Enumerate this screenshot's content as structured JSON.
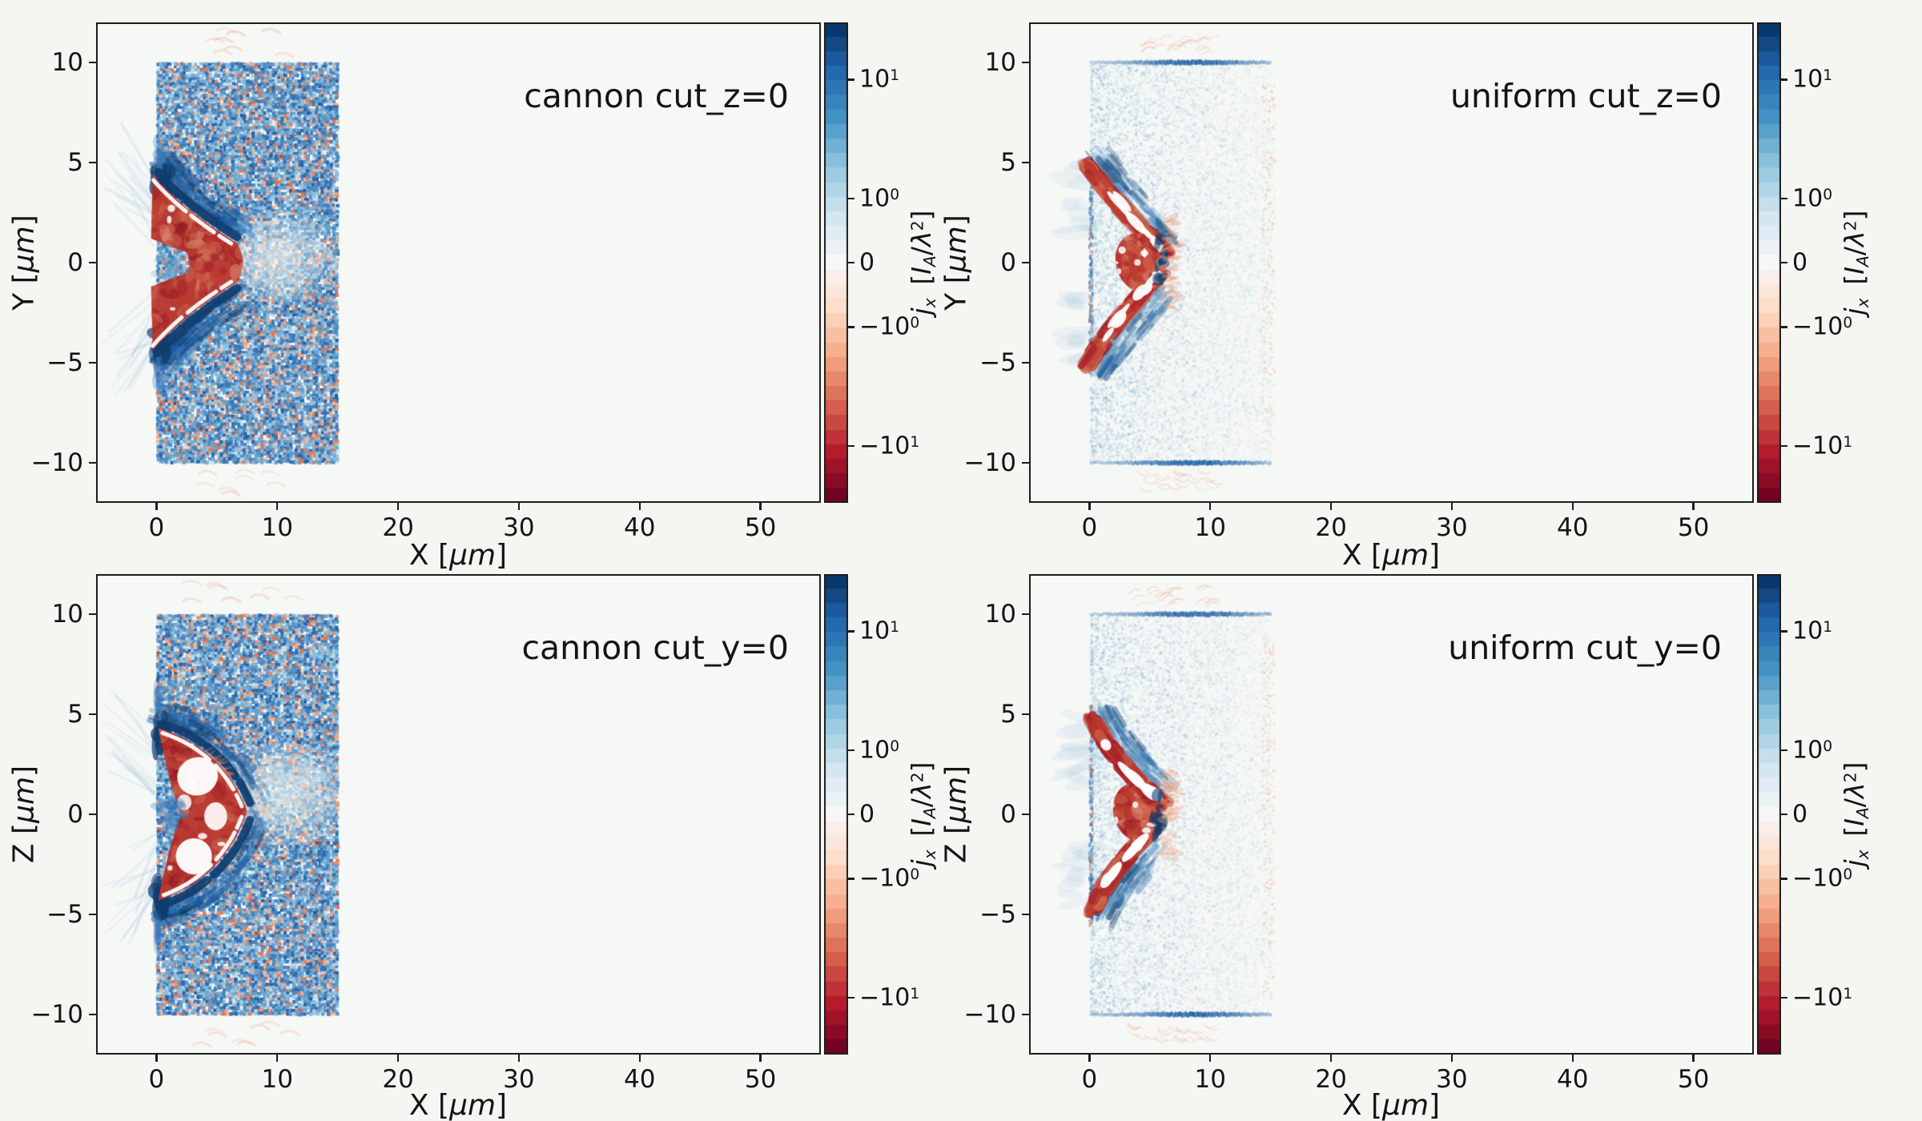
{
  "chart_data": {
    "type": "heatmap",
    "description": "2x2 grid of particle-in-cell simulation current-density slices, diverging RdBu colormap on a symlog scale",
    "figure_bg": "#f5f6f2",
    "panel_bg": "#f6f8f6",
    "text_color": "#141414",
    "xlim": [
      -5,
      55
    ],
    "ylim": [
      -12,
      12
    ],
    "x_ticks": [
      0,
      10,
      20,
      30,
      40,
      50
    ],
    "y_ticks": [
      10,
      5,
      0,
      -5,
      -10
    ],
    "xlabel": {
      "v": "X",
      "open": " [",
      "it": "μm",
      "close": "]"
    },
    "ylabel_row1": {
      "v": "Y",
      "open": " [",
      "it": "μm",
      "close": "]"
    },
    "ylabel_row2": {
      "v": "Z",
      "open": " [",
      "it": "μm",
      "close": "]"
    },
    "colorbar": {
      "scale": "symlog",
      "label": {
        "j": "j",
        "jsub": "x",
        "sp": " [",
        "I": "I",
        "Isub": "A",
        "slash": "/",
        "lam": "λ",
        "exp": "2",
        "close": "]"
      },
      "ticks": [
        {
          "t": "10",
          "e": "1",
          "f": 0.119
        },
        {
          "t": "10",
          "e": "0",
          "f": 0.366
        },
        {
          "t": "0",
          "e": "",
          "f": 0.5
        },
        {
          "t": "−10",
          "e": "0",
          "f": 0.634
        },
        {
          "t": "−10",
          "e": "1",
          "f": 0.881
        }
      ],
      "n_bands": 33,
      "palette_red_to_blue": [
        "#67001f",
        "#b2182b",
        "#d6604d",
        "#f4a582",
        "#fddbc7",
        "#f7f7f7",
        "#d1e5f0",
        "#92c5de",
        "#4393c3",
        "#2166ac",
        "#053061"
      ]
    },
    "panels": [
      {
        "id": "cannon-cut-z",
        "title": "cannon cut_z=0",
        "row": 1,
        "col": 1,
        "style": "cannon",
        "seed": 101,
        "noise_block": {
          "x": [
            0,
            15
          ],
          "y": [
            -10,
            10
          ]
        },
        "structure": {
          "shape": "notched-arrow-left",
          "x": [
            -0.6,
            7.6
          ],
          "y": [
            -4.5,
            4.5
          ],
          "sign": "negative"
        },
        "wash": {
          "cx": 10.0,
          "cy": 0.3,
          "rx": 5.0,
          "ry": 2.3
        }
      },
      {
        "id": "uniform-cut-z",
        "title": "uniform cut_z=0",
        "row": 1,
        "col": 2,
        "style": "uniform",
        "seed": 202,
        "noise_block": {
          "x": [
            0,
            15
          ],
          "y": [
            -10,
            10
          ]
        },
        "edge_lines_y": [
          10,
          -10
        ],
        "structure": {
          "shape": "chevron-left",
          "x": [
            -0.4,
            6.6
          ],
          "y": [
            -5.0,
            5.0
          ],
          "sign": "negative"
        }
      },
      {
        "id": "cannon-cut-y",
        "title": "cannon cut_y=0",
        "row": 2,
        "col": 1,
        "style": "cannon",
        "seed": 303,
        "noise_block": {
          "x": [
            0,
            15
          ],
          "y": [
            -10,
            10
          ]
        },
        "structure": {
          "shape": "crescent-left-white-core",
          "x": [
            -0.3,
            7.6
          ],
          "y": [
            -4.4,
            4.4
          ],
          "sign": "negative"
        },
        "wash": {
          "cx": 10.5,
          "cy": 1.0,
          "rx": 5.5,
          "ry": 2.6
        }
      },
      {
        "id": "uniform-cut-y",
        "title": "uniform cut_y=0",
        "row": 2,
        "col": 2,
        "style": "uniform",
        "seed": 404,
        "noise_block": {
          "x": [
            0,
            15
          ],
          "y": [
            -10,
            10
          ]
        },
        "edge_lines_y": [
          10,
          -10
        ],
        "structure": {
          "shape": "s-chevron-left",
          "x": [
            -0.2,
            6.2
          ],
          "y": [
            -5.0,
            5.0
          ],
          "sign": "negative"
        }
      }
    ],
    "speckle_colors": {
      "blue": [
        "#1f5fa6",
        "#3a7ab8",
        "#5e9bc9",
        "#86b8d9",
        "#b3d3e8"
      ],
      "red": [
        "#efa07e",
        "#e2714b",
        "#d9573f"
      ],
      "navy": "#0f3d6e",
      "red_core": [
        "#a41e28",
        "#bb3a30",
        "#cf6a4e",
        "#8c1320",
        "#e0937a"
      ],
      "white": "#ffffff"
    }
  }
}
